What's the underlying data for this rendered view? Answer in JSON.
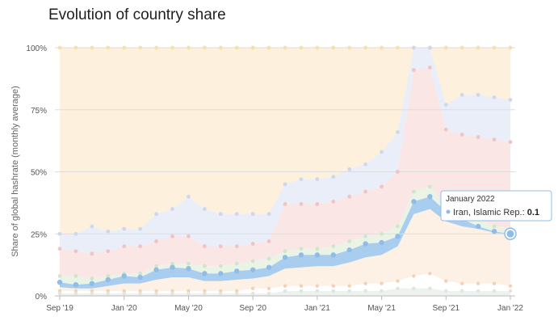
{
  "title": "Evolution of country share",
  "colors": {
    "others_band": "#fdf0dd",
    "others_dot": "#f6dfaf",
    "band2": "#e9eef8",
    "band2_dot": "#cdd8ec",
    "china_band": "#fbe6e6",
    "china_dot": "#f0c4c4",
    "green_band": "#e9f4e7",
    "green_dot": "#cfe6cb",
    "orange_band": "#fdeede",
    "orange_dot": "#f2d2b6",
    "iran_band": "#a9cdee",
    "iran_dot": "#8fbde8",
    "grid": "#dddddd",
    "axis": "#bbbbbb",
    "tooltip_bg": "#ffffff",
    "tooltip_border": "#8fbde8"
  },
  "chart_data": {
    "type": "area",
    "ylabel": "Share of global hashrate (monthly average)",
    "ylim": [
      0,
      100
    ],
    "y_ticks": [
      0,
      25,
      50,
      75,
      100
    ],
    "y_tick_labels": [
      "0%",
      "25%",
      "50%",
      "75%",
      "100%"
    ],
    "x": [
      "2019-09",
      "2019-10",
      "2019-11",
      "2019-12",
      "2020-01",
      "2020-02",
      "2020-03",
      "2020-04",
      "2020-05",
      "2020-06",
      "2020-07",
      "2020-08",
      "2020-09",
      "2020-10",
      "2020-11",
      "2020-12",
      "2021-01",
      "2021-02",
      "2021-03",
      "2021-04",
      "2021-05",
      "2021-06",
      "2021-07",
      "2021-08",
      "2021-09",
      "2021-10",
      "2021-11",
      "2021-12",
      "2022-01"
    ],
    "x_tick_labels": [
      {
        "x": "2019-09",
        "label": "Sep '19"
      },
      {
        "x": "2020-01",
        "label": "Jan '20"
      },
      {
        "x": "2020-05",
        "label": "May '20"
      },
      {
        "x": "2020-09",
        "label": "Sep '20"
      },
      {
        "x": "2021-01",
        "label": "Jan '21"
      },
      {
        "x": "2021-05",
        "label": "May '21"
      },
      {
        "x": "2021-09",
        "label": "Sep '21"
      },
      {
        "x": "2022-01",
        "label": "Jan '22"
      }
    ],
    "series": [
      {
        "key": "iran_upper",
        "values": [
          5.5,
          4.5,
          5,
          6.5,
          8,
          7.5,
          10.5,
          11.5,
          11,
          9,
          9,
          10,
          10.5,
          11.5,
          15.5,
          16.5,
          16.5,
          16.5,
          18.5,
          21,
          21.5,
          24,
          38,
          40,
          34,
          31,
          28,
          26,
          25
        ]
      },
      {
        "key": "iran_lower",
        "values": [
          3.5,
          3,
          3,
          4,
          5,
          5,
          6.5,
          7.5,
          7.5,
          6,
          6,
          6.5,
          7,
          8,
          11,
          11.5,
          12,
          12,
          13.5,
          15.5,
          16.5,
          20,
          33,
          35,
          30,
          28,
          27,
          25.5,
          24.5
        ]
      },
      {
        "key": "green_top",
        "values": [
          8,
          8,
          7,
          8,
          9,
          9,
          12,
          13,
          13,
          12,
          12,
          13,
          14,
          15,
          18,
          19,
          19,
          20,
          22,
          24,
          25,
          28,
          42,
          44,
          36,
          33,
          31,
          28,
          27
        ]
      },
      {
        "key": "china_top",
        "values": [
          19,
          18,
          17,
          18,
          20,
          20,
          22,
          24,
          24,
          20,
          20,
          20,
          21,
          22,
          37,
          37,
          37,
          38,
          40,
          42,
          44,
          50,
          91,
          92,
          67,
          65,
          64,
          63,
          62
        ]
      },
      {
        "key": "band2_top",
        "values": [
          25,
          25,
          28,
          26,
          27,
          27,
          33,
          35,
          40,
          35,
          33,
          33,
          33,
          33,
          45,
          47,
          47,
          48,
          51,
          53,
          58,
          66,
          100,
          100,
          77,
          81,
          81,
          80,
          79
        ]
      },
      {
        "key": "orange_bottom",
        "values": [
          1,
          1,
          1,
          1,
          1,
          1,
          1,
          1,
          1,
          1,
          1,
          1,
          1,
          1,
          2,
          2,
          2,
          2,
          2,
          2,
          2,
          3,
          3,
          3,
          2,
          2,
          2,
          2,
          2
        ]
      },
      {
        "key": "orange_top",
        "values": [
          2,
          2,
          2,
          2,
          2,
          2,
          2,
          2,
          2,
          2,
          2,
          2,
          3,
          3,
          4,
          4,
          4,
          4,
          4,
          5,
          5,
          6,
          8,
          9,
          6,
          5,
          5,
          5,
          4
        ]
      }
    ],
    "tooltip": {
      "date": "January 2022",
      "series": "Iran, Islamic Rep.:",
      "value": "0.1"
    }
  }
}
